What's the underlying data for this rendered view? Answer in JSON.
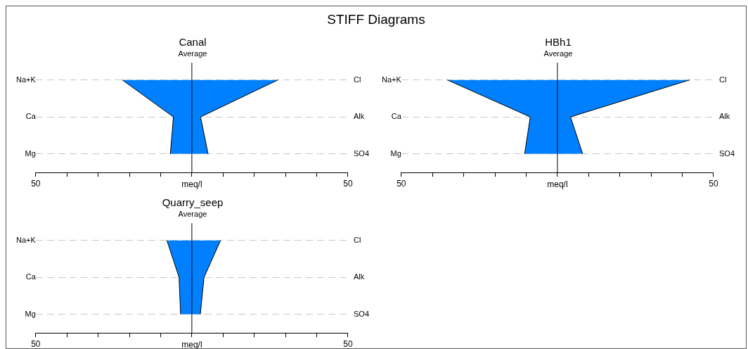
{
  "chart_data": [
    {
      "type": "other",
      "title": "STIFF Diagrams"
    },
    {
      "type": "area",
      "orientation": "horizontal",
      "title": "Canal",
      "subtitle": "Average",
      "xlabel": "meq/l",
      "categories": [
        "Na+K",
        "Ca",
        "Mg"
      ],
      "y2_categories": [
        "Cl",
        "Alk",
        "SO4"
      ],
      "grid": "y",
      "xlim": [
        -50,
        50
      ],
      "xticks": [
        {
          "value": -50,
          "label": "50"
        },
        {
          "value": -40,
          "label": null
        },
        {
          "value": -30,
          "label": null
        },
        {
          "value": -20,
          "label": null
        },
        {
          "value": -10,
          "label": null
        },
        {
          "value": 0,
          "label": null
        },
        {
          "value": 10,
          "label": null
        },
        {
          "value": 20,
          "label": null
        },
        {
          "value": 30,
          "label": null
        },
        {
          "value": 40,
          "label": null
        },
        {
          "value": 50,
          "label": "50"
        }
      ],
      "ref_lines": [
        {
          "axis": "x",
          "value": 0
        }
      ],
      "series": [
        {
          "color": "#0080ff",
          "values": [
            -22.3,
            -5.9,
            -6.9
          ]
        },
        {
          "color": "#0080ff",
          "values": [
            27.6,
            2.8,
            5.2
          ]
        }
      ]
    },
    {
      "type": "area",
      "orientation": "horizontal",
      "title": "HBh1",
      "subtitle": "Average",
      "xlabel": "meq/l",
      "categories": [
        "Na+K",
        "Ca",
        "Mg"
      ],
      "y2_categories": [
        "Cl",
        "Alk",
        "SO4"
      ],
      "grid": "y",
      "xlim": [
        -50,
        50
      ],
      "xticks": [
        {
          "value": -50,
          "label": "50"
        },
        {
          "value": -40,
          "label": null
        },
        {
          "value": -30,
          "label": null
        },
        {
          "value": -20,
          "label": null
        },
        {
          "value": -10,
          "label": null
        },
        {
          "value": 0,
          "label": null
        },
        {
          "value": 10,
          "label": null
        },
        {
          "value": 20,
          "label": null
        },
        {
          "value": 30,
          "label": null
        },
        {
          "value": 40,
          "label": null
        },
        {
          "value": 50,
          "label": "50"
        }
      ],
      "ref_lines": [
        {
          "axis": "x",
          "value": 0
        }
      ],
      "series": [
        {
          "color": "#0080ff",
          "values": [
            -35.3,
            -8.7,
            -10.5
          ]
        },
        {
          "color": "#0080ff",
          "values": [
            42.4,
            4.2,
            8.1
          ]
        }
      ]
    },
    {
      "type": "area",
      "orientation": "horizontal",
      "title": "Quarry_seep",
      "subtitle": "Average",
      "xlabel": "meq/l",
      "categories": [
        "Na+K",
        "Ca",
        "Mg"
      ],
      "y2_categories": [
        "Cl",
        "Alk",
        "SO4"
      ],
      "grid": "y",
      "xlim": [
        -50,
        50
      ],
      "xticks": [
        {
          "value": -50,
          "label": "50"
        },
        {
          "value": -40,
          "label": null
        },
        {
          "value": -30,
          "label": null
        },
        {
          "value": -20,
          "label": null
        },
        {
          "value": -10,
          "label": null
        },
        {
          "value": 0,
          "label": null
        },
        {
          "value": 10,
          "label": null
        },
        {
          "value": 20,
          "label": null
        },
        {
          "value": 30,
          "label": null
        },
        {
          "value": 40,
          "label": null
        },
        {
          "value": 50,
          "label": "50"
        }
      ],
      "ref_lines": [
        {
          "axis": "x",
          "value": 0
        }
      ],
      "series": [
        {
          "color": "#0080ff",
          "values": [
            -8.0,
            -4.1,
            -3.6
          ]
        },
        {
          "color": "#0080ff",
          "values": [
            9.2,
            3.9,
            2.7
          ]
        }
      ]
    }
  ]
}
